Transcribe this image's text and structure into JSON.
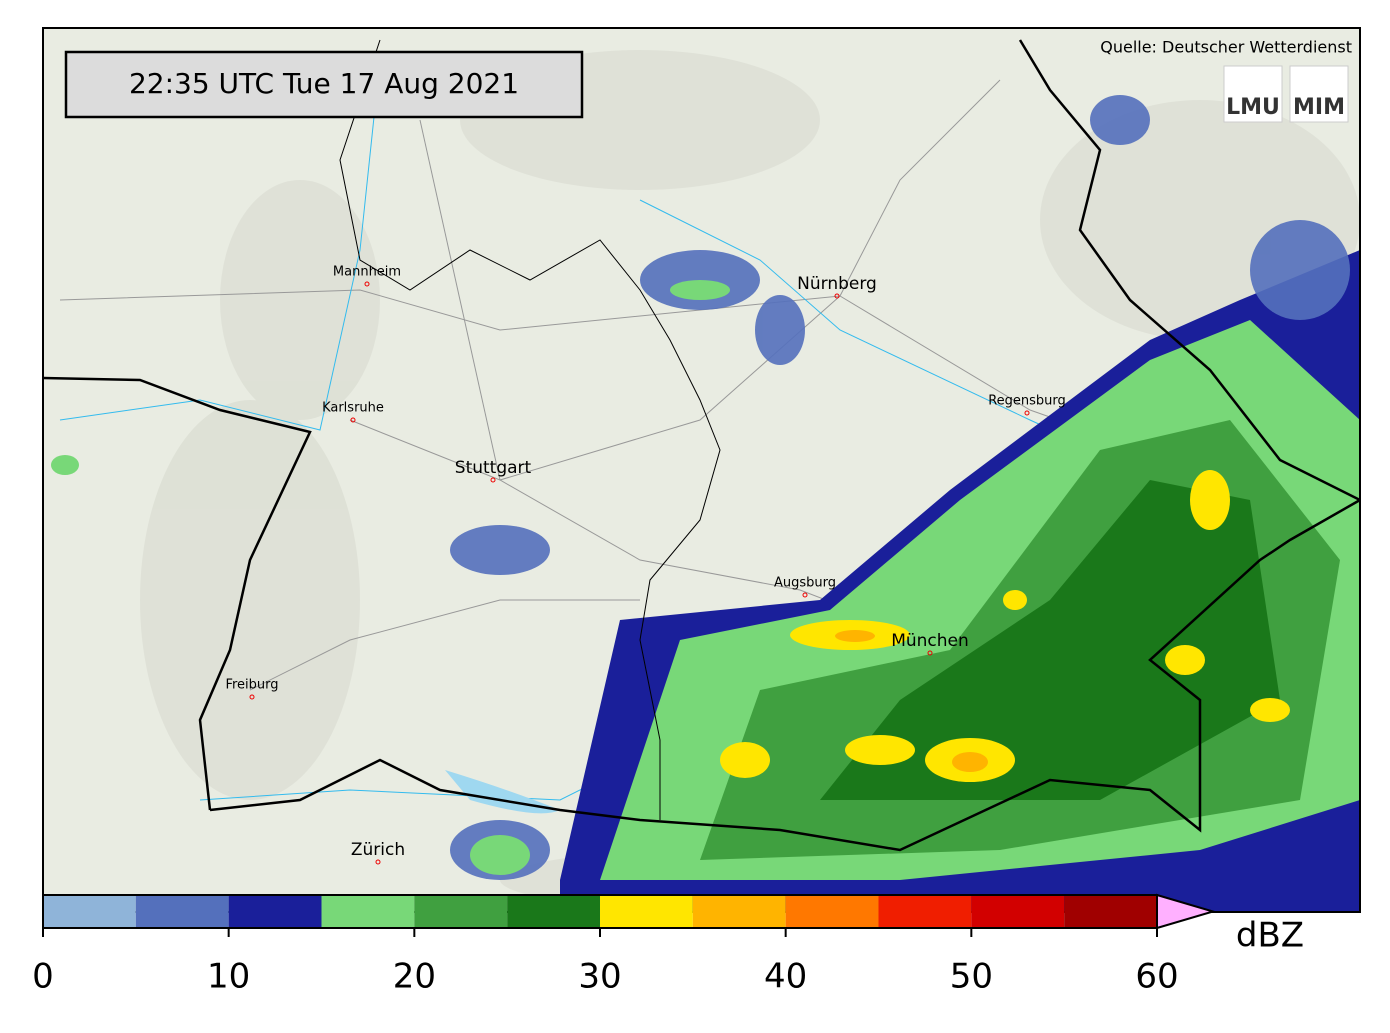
{
  "header": {
    "timestamp": "22:35 UTC  Tue 17 Aug 2021",
    "source": "Quelle: Deutscher Wetterdienst",
    "logos": [
      "LMU",
      "MIM"
    ]
  },
  "map": {
    "cities": [
      "Mannheim",
      "Nürnberg",
      "Karlsruhe",
      "Regensburg",
      "Stuttgart",
      "Augsburg",
      "München",
      "Freiburg",
      "Zürich"
    ]
  },
  "colorbar": {
    "bounds": [
      0,
      5,
      10,
      15,
      20,
      25,
      30,
      35,
      40,
      45,
      50,
      55,
      60
    ],
    "colors": [
      "#8fb4d9",
      "#5470bc",
      "#1a1f9a",
      "#78d878",
      "#40a040",
      "#1a781a",
      "#ffe600",
      "#ffb400",
      "#ff7800",
      "#f01e00",
      "#d20000",
      "#a00000"
    ],
    "extend_color": "#ffb0ff",
    "ticks": [
      0,
      10,
      20,
      30,
      40,
      50,
      60
    ],
    "unit": "dBZ"
  }
}
